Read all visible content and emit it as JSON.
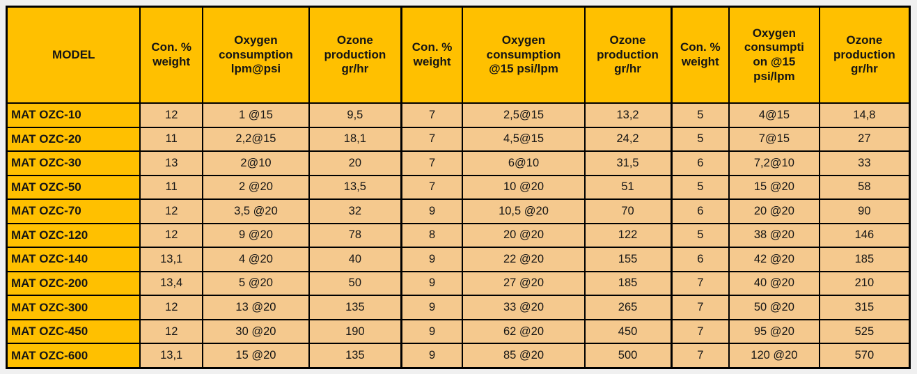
{
  "page": {
    "background_color": "#f0f0f0"
  },
  "table": {
    "description": "Ozone generator specification table",
    "colors": {
      "header_bg": "#FFC000",
      "model_column_bg": "#FFC000",
      "data_cell_bg": "#F5C98E",
      "border": "#000000",
      "text": "#151515"
    },
    "headers": [
      "MODEL",
      "Con. %\nweight",
      "Oxygen\nconsumption\nlpm@psi",
      "Ozone\nproduction\ngr/hr",
      "Con. %\nweight",
      "Oxygen\nconsumption\n@15 psi/lpm",
      "Ozone\nproduction\ngr/hr",
      "Con. %\nweight",
      "Oxygen\nconsumpti\non @15\npsi/lpm",
      "Ozone\nproduction\ngr/hr"
    ],
    "rows": [
      [
        "MAT OZC-10",
        "12",
        "1 @15",
        "9,5",
        "7",
        "2,5@15",
        "13,2",
        "5",
        "4@15",
        "14,8"
      ],
      [
        "MAT OZC-20",
        "11",
        "2,2@15",
        "18,1",
        "7",
        "4,5@15",
        "24,2",
        "5",
        "7@15",
        "27"
      ],
      [
        "MAT OZC-30",
        "13",
        "2@10",
        "20",
        "7",
        "6@10",
        "31,5",
        "6",
        "7,2@10",
        "33"
      ],
      [
        "MAT OZC-50",
        "11",
        "2 @20",
        "13,5",
        "7",
        "10 @20",
        "51",
        "5",
        "15 @20",
        "58"
      ],
      [
        "MAT OZC-70",
        "12",
        "3,5 @20",
        "32",
        "9",
        "10,5 @20",
        "70",
        "6",
        "20 @20",
        "90"
      ],
      [
        "MAT OZC-120",
        "12",
        "9 @20",
        "78",
        "8",
        "20 @20",
        "122",
        "5",
        "38 @20",
        "146"
      ],
      [
        "MAT OZC-140",
        "13,1",
        "4 @20",
        "40",
        "9",
        "22 @20",
        "155",
        "6",
        "42 @20",
        "185"
      ],
      [
        "MAT OZC-200",
        "13,4",
        "5 @20",
        "50",
        "9",
        "27 @20",
        "185",
        "7",
        "40 @20",
        "210"
      ],
      [
        "MAT OZC-300",
        "12",
        "13 @20",
        "135",
        "9",
        "33 @20",
        "265",
        "7",
        "50 @20",
        "315"
      ],
      [
        "MAT OZC-450",
        "12",
        "30 @20",
        "190",
        "9",
        "62 @20",
        "450",
        "7",
        "95 @20",
        "525"
      ],
      [
        "MAT OZC-600",
        "13,1",
        "15 @20",
        "135",
        "9",
        "85 @20",
        "500",
        "7",
        "120 @20",
        "570"
      ]
    ]
  }
}
